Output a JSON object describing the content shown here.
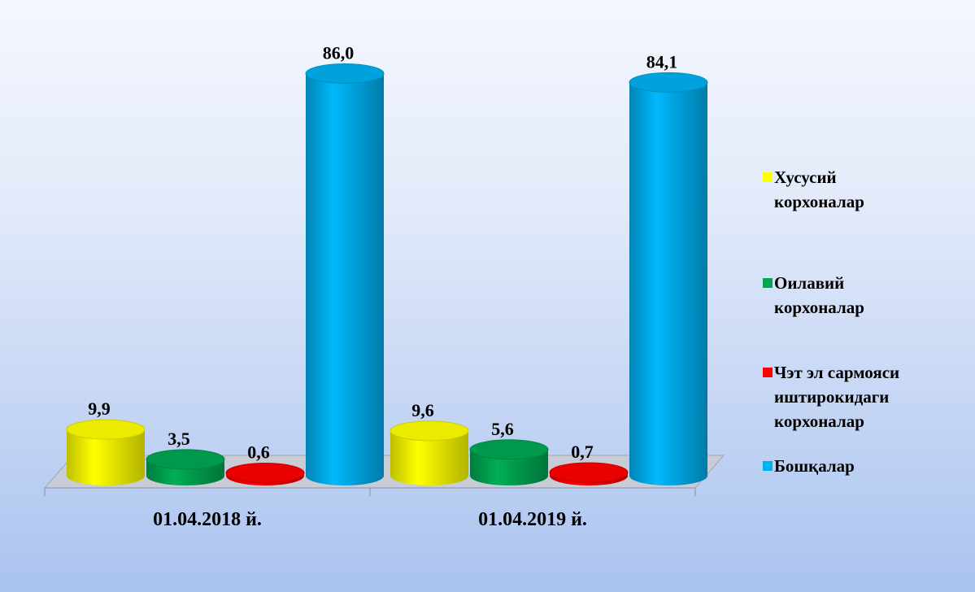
{
  "chart_data": {
    "type": "bar",
    "categories": [
      "01.04.2018 й.",
      "01.04.2019 й."
    ],
    "series": [
      {
        "name": "Хусусий корхоналар",
        "color": "#ffff00",
        "values": [
          9.9,
          9.6
        ],
        "value_labels": [
          "9,9",
          "9,6"
        ]
      },
      {
        "name": "Оилавий корхоналар",
        "color": "#00a651",
        "values": [
          3.5,
          5.6
        ],
        "value_labels": [
          "3,5",
          "5,6"
        ]
      },
      {
        "name": "Чэт эл сармояси иштирокидаги корхоналар",
        "color": "#ff0000",
        "values": [
          0.6,
          0.7
        ],
        "value_labels": [
          "0,6",
          "0,7"
        ]
      },
      {
        "name": "Бошқалар",
        "color": "#00b0f0",
        "values": [
          86.0,
          84.1
        ],
        "value_labels": [
          "86,0",
          "84,1"
        ]
      }
    ]
  }
}
